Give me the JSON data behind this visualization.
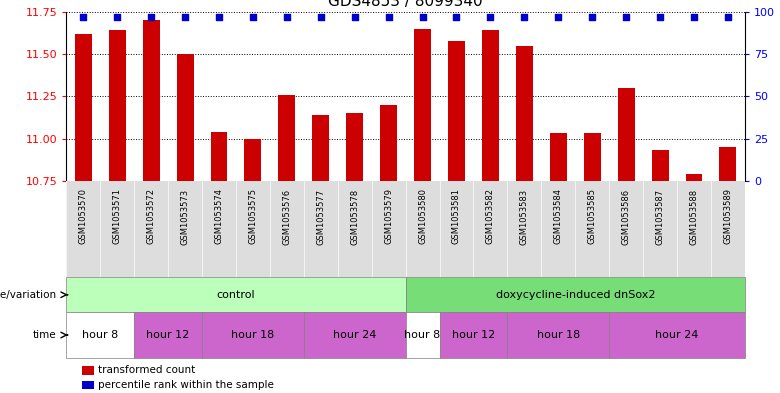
{
  "title": "GDS4853 / 8099340",
  "samples": [
    "GSM1053570",
    "GSM1053571",
    "GSM1053572",
    "GSM1053573",
    "GSM1053574",
    "GSM1053575",
    "GSM1053576",
    "GSM1053577",
    "GSM1053578",
    "GSM1053579",
    "GSM1053580",
    "GSM1053581",
    "GSM1053582",
    "GSM1053583",
    "GSM1053584",
    "GSM1053585",
    "GSM1053586",
    "GSM1053587",
    "GSM1053588",
    "GSM1053589"
  ],
  "bar_values": [
    11.62,
    11.64,
    11.7,
    11.5,
    11.04,
    11.0,
    11.26,
    11.14,
    11.15,
    11.2,
    11.65,
    11.58,
    11.64,
    11.55,
    11.03,
    11.03,
    11.3,
    10.93,
    10.79,
    10.95
  ],
  "percentile_values": [
    97,
    97,
    97,
    97,
    97,
    97,
    97,
    97,
    97,
    97,
    97,
    97,
    97,
    97,
    97,
    97,
    97,
    97,
    97,
    97
  ],
  "ylim_left": [
    10.75,
    11.75
  ],
  "ylim_right": [
    0,
    100
  ],
  "yticks_left": [
    10.75,
    11.0,
    11.25,
    11.5,
    11.75
  ],
  "yticks_right": [
    0,
    25,
    50,
    75,
    100
  ],
  "bar_color": "#cc0000",
  "percentile_color": "#0000cc",
  "bar_width": 0.5,
  "genotype_groups": [
    {
      "label": "control",
      "start": 0,
      "end": 10,
      "color": "#bbffbb"
    },
    {
      "label": "doxycycline-induced dnSox2",
      "start": 10,
      "end": 20,
      "color": "#77dd77"
    }
  ],
  "time_spans": [
    {
      "label": "hour 8",
      "start": 0,
      "end": 2,
      "color": "#ffffff"
    },
    {
      "label": "hour 12",
      "start": 2,
      "end": 4,
      "color": "#cc66cc"
    },
    {
      "label": "hour 18",
      "start": 4,
      "end": 7,
      "color": "#cc66cc"
    },
    {
      "label": "hour 24",
      "start": 7,
      "end": 10,
      "color": "#cc66cc"
    },
    {
      "label": "hour 8",
      "start": 10,
      "end": 11,
      "color": "#ffffff"
    },
    {
      "label": "hour 12",
      "start": 11,
      "end": 13,
      "color": "#cc66cc"
    },
    {
      "label": "hour 18",
      "start": 13,
      "end": 16,
      "color": "#cc66cc"
    },
    {
      "label": "hour 24",
      "start": 16,
      "end": 20,
      "color": "#cc66cc"
    }
  ],
  "legend_items": [
    {
      "label": "transformed count",
      "color": "#cc0000"
    },
    {
      "label": "percentile rank within the sample",
      "color": "#0000cc"
    }
  ],
  "label_genotype": "genotype/variation",
  "label_time": "time",
  "sample_label_color": "#dddddd",
  "background_color": "#ffffff",
  "title_fontsize": 11
}
